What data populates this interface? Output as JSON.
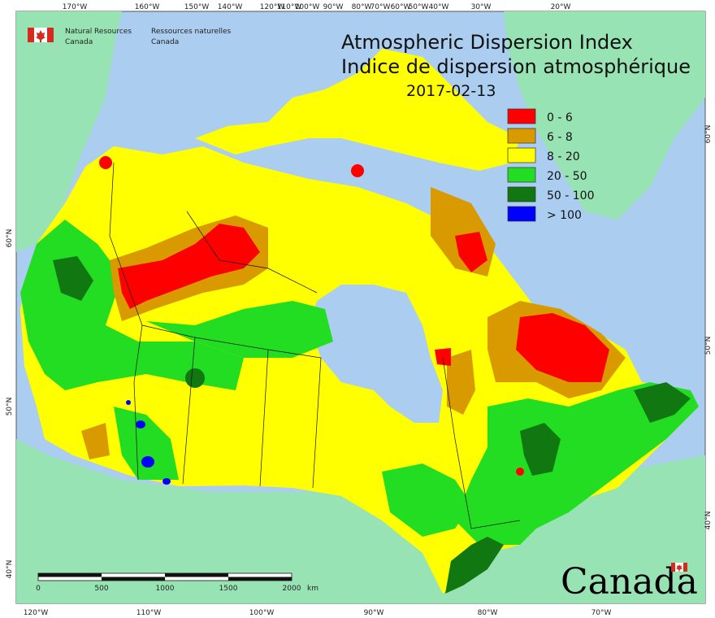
{
  "header": {
    "agency_en_1": "Natural Resources",
    "agency_en_2": "Canada",
    "agency_fr_1": "Ressources naturelles",
    "agency_fr_2": "Canada",
    "title_en": "Atmospheric Dispersion Index",
    "title_fr": "Indice de dispersion atmosphérique",
    "date": "2017-02-13"
  },
  "legend": [
    {
      "label": "0 - 6",
      "color": "#ff0000"
    },
    {
      "label": "6 - 8",
      "color": "#d99a00"
    },
    {
      "label": "8 - 20",
      "color": "#ffff00"
    },
    {
      "label": "20 - 50",
      "color": "#22dd22"
    },
    {
      "label": "50 - 100",
      "color": "#117711"
    },
    {
      "label": "> 100",
      "color": "#0000ff"
    }
  ],
  "graticule": {
    "top": [
      "170°W",
      "160°W",
      "150°W",
      "140°W",
      "120°W",
      "110°W",
      "100°W",
      "90°W",
      "80°W",
      "70°W",
      "60°W",
      "50°W",
      "40°W",
      "30°W",
      "20°W"
    ],
    "bottom": [
      "120°W",
      "110°W",
      "100°W",
      "90°W",
      "80°W",
      "70°W"
    ],
    "left": [
      "60°N",
      "50°N",
      "40°N"
    ],
    "right": [
      "60°N",
      "50°N",
      "40°N"
    ]
  },
  "scalebar": {
    "ticks": [
      "0",
      "500",
      "1000",
      "1500",
      "2000"
    ],
    "unit": "km"
  },
  "wordmark": "Canada",
  "colors": {
    "ocean": "#abcdf0",
    "land_other": "#98e3b4"
  }
}
